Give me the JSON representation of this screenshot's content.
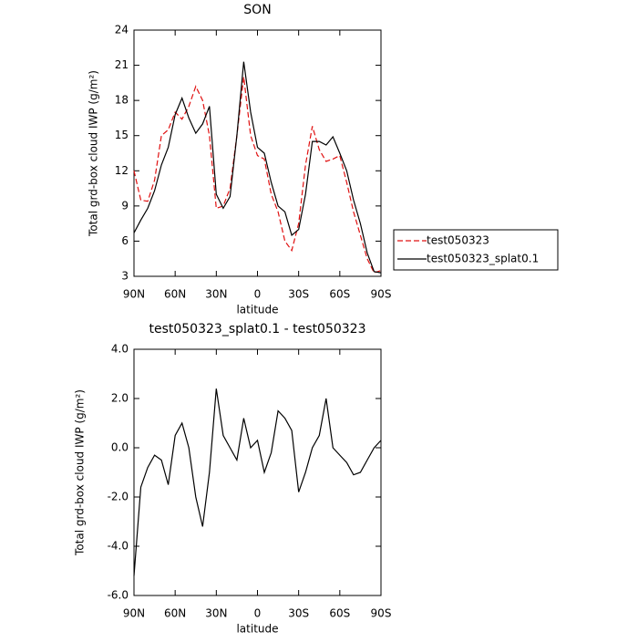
{
  "chart_data": [
    {
      "type": "line",
      "title": "SON",
      "x_label": "latitude",
      "y_label": "Total grd-box cloud IWP (g/m²)",
      "x": [
        90,
        85,
        80,
        75,
        70,
        65,
        60,
        55,
        50,
        45,
        40,
        35,
        30,
        25,
        20,
        15,
        10,
        5,
        0,
        -5,
        -10,
        -15,
        -20,
        -25,
        -30,
        -35,
        -40,
        -45,
        -50,
        -55,
        -60,
        -65,
        -70,
        -75,
        -80,
        -85,
        -90
      ],
      "xlim": [
        90,
        -90
      ],
      "xticks": [
        {
          "value": 90,
          "label": "90N"
        },
        {
          "value": 60,
          "label": "60N"
        },
        {
          "value": 30,
          "label": "30N"
        },
        0,
        {
          "value": -30,
          "label": "30S"
        },
        {
          "value": -60,
          "label": "60S"
        },
        {
          "value": -90,
          "label": "90S"
        }
      ],
      "ylim": [
        3,
        24
      ],
      "yticks": [
        3,
        6,
        9,
        12,
        15,
        18,
        21,
        24
      ],
      "legend": "right",
      "series": [
        {
          "name": "test050323",
          "color": "#e01010",
          "dash": "dashed",
          "values": [
            12.0,
            9.5,
            9.4,
            11.2,
            15.0,
            15.5,
            17.0,
            16.4,
            17.5,
            19.2,
            18.0,
            15.0,
            8.8,
            9.0,
            10.5,
            15.0,
            20.0,
            15.0,
            13.3,
            13.0,
            10.0,
            8.5,
            6.0,
            5.2,
            7.5,
            12.5,
            15.8,
            13.8,
            12.8,
            13.0,
            13.3,
            11.0,
            8.5,
            6.5,
            4.5,
            3.3,
            3.5
          ]
        },
        {
          "name": "test050323_splat0.1",
          "color": "#000000",
          "dash": "solid",
          "values": [
            6.7,
            7.8,
            8.8,
            10.3,
            12.5,
            14.0,
            16.8,
            18.2,
            16.5,
            15.2,
            16.0,
            17.5,
            10.0,
            8.8,
            9.8,
            15.0,
            21.3,
            17.0,
            14.0,
            13.5,
            11.0,
            9.0,
            8.5,
            6.5,
            7.0,
            10.0,
            14.5,
            14.5,
            14.2,
            14.9,
            13.5,
            12.0,
            9.5,
            7.5,
            5.0,
            3.4,
            3.3
          ]
        }
      ]
    },
    {
      "type": "line",
      "title": "test050323_splat0.1 - test050323",
      "x_label": "latitude",
      "y_label": "Total grd-box cloud IWP (g/m²)",
      "x": [
        90,
        85,
        80,
        75,
        70,
        65,
        60,
        55,
        50,
        45,
        40,
        35,
        30,
        25,
        20,
        15,
        10,
        5,
        0,
        -5,
        -10,
        -15,
        -20,
        -25,
        -30,
        -35,
        -40,
        -45,
        -50,
        -55,
        -60,
        -65,
        -70,
        -75,
        -80,
        -85,
        -90
      ],
      "xlim": [
        90,
        -90
      ],
      "xticks": [
        {
          "value": 90,
          "label": "90N"
        },
        {
          "value": 60,
          "label": "60N"
        },
        {
          "value": 30,
          "label": "30N"
        },
        0,
        {
          "value": -30,
          "label": "30S"
        },
        {
          "value": -60,
          "label": "60S"
        },
        {
          "value": -90,
          "label": "90S"
        }
      ],
      "ylim": [
        -6,
        4
      ],
      "yticks": [
        {
          "value": -6,
          "label": "-6.0"
        },
        {
          "value": -4,
          "label": "-4.0"
        },
        {
          "value": -2,
          "label": "-2.0"
        },
        {
          "value": 0,
          "label": "0.0"
        },
        {
          "value": 2,
          "label": "2.0"
        },
        {
          "value": 4,
          "label": "4.0"
        }
      ],
      "color": "#000000",
      "values": [
        -5.2,
        -1.6,
        -0.8,
        -0.3,
        -0.5,
        -1.5,
        0.5,
        1.0,
        0.0,
        -2.0,
        -3.2,
        -1.0,
        2.4,
        0.5,
        0.0,
        -0.5,
        1.2,
        0.0,
        0.3,
        -1.0,
        -0.2,
        1.5,
        1.2,
        0.7,
        -1.8,
        -1.0,
        0.0,
        0.5,
        2.0,
        0.0,
        -0.3,
        -0.6,
        -1.1,
        -1.0,
        -0.5,
        0.0,
        0.3
      ]
    }
  ]
}
